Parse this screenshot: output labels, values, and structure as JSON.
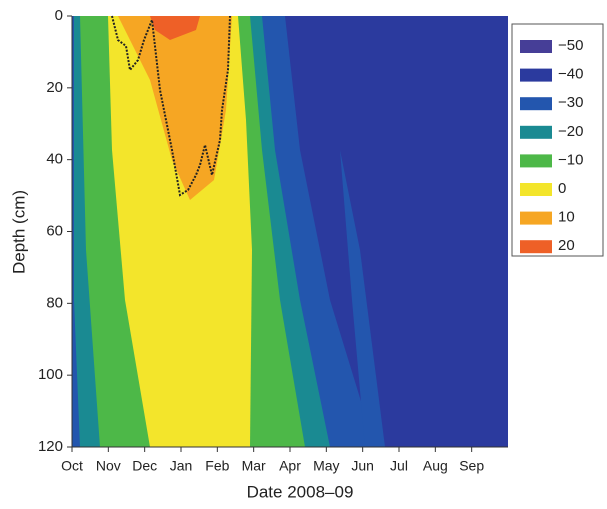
{
  "chart_data": {
    "type": "contour",
    "x_label": "Date 2008–09",
    "y_label": "Depth (cm)",
    "categories": [
      "Oct",
      "Nov",
      "Dec",
      "Jan",
      "Feb",
      "Mar",
      "Apr",
      "May",
      "Jun",
      "Jul",
      "Aug",
      "Sep"
    ],
    "ylim": [
      0,
      120
    ],
    "yticks": [
      0,
      20,
      40,
      60,
      80,
      100,
      120
    ],
    "y_inverted": true,
    "levels": [
      {
        "value": -50,
        "label": "−50"
      },
      {
        "value": -40,
        "label": "−40"
      },
      {
        "value": -30,
        "label": "−30"
      },
      {
        "value": -20,
        "label": "−20"
      },
      {
        "value": -10,
        "label": "−10"
      },
      {
        "value": 0,
        "label": "0"
      },
      {
        "value": 10,
        "label": "10"
      },
      {
        "value": 20,
        "label": "20"
      }
    ],
    "level_colors": [
      "#463e97",
      "#2b3a9e",
      "#2356ae",
      "#1a8a92",
      "#4db848",
      "#f3e52b",
      "#f6a623",
      "#ee6027"
    ],
    "legend": "right"
  }
}
